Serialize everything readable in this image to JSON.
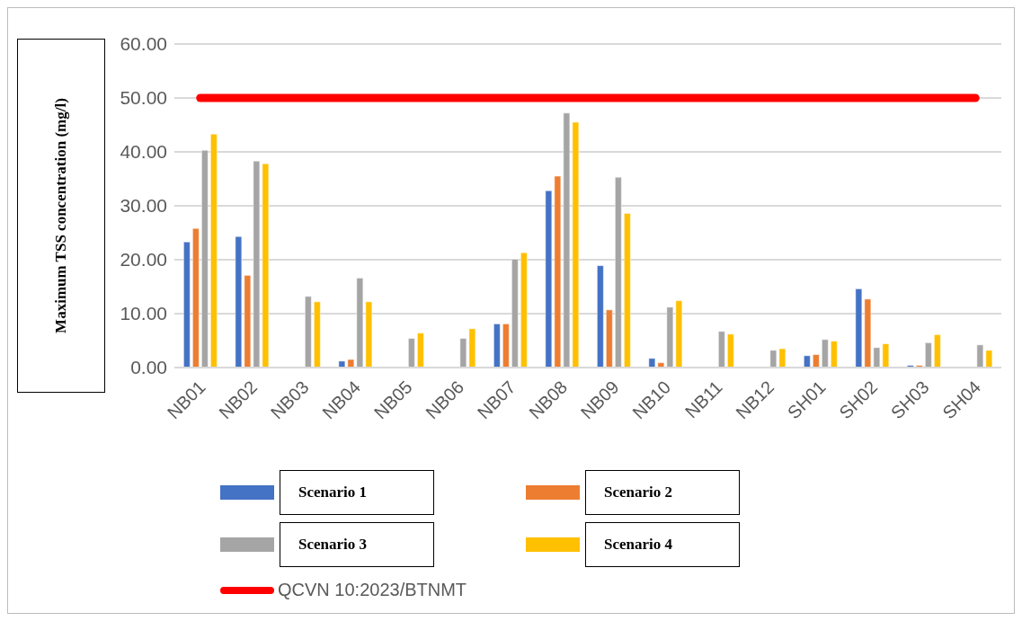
{
  "chart_data": {
    "type": "bar",
    "ylabel": "Maximum TSS concentration (mg/l)",
    "categories": [
      "NB01",
      "NB02",
      "NB03",
      "NB04",
      "NB05",
      "NB06",
      "NB07",
      "NB08",
      "NB09",
      "NB10",
      "NB11",
      "NB12",
      "SH01",
      "SH02",
      "SH03",
      "SH04"
    ],
    "series": [
      {
        "name": "Scenario 1",
        "color": "#4472c4",
        "values": [
          23.3,
          24.3,
          0,
          1.2,
          0,
          0,
          8.1,
          32.8,
          18.9,
          1.7,
          0,
          0,
          2.2,
          14.6,
          0.4,
          0
        ]
      },
      {
        "name": "Scenario 2",
        "color": "#ed7d31",
        "values": [
          25.8,
          17.1,
          0,
          1.5,
          0,
          0,
          8.1,
          35.5,
          10.7,
          0.9,
          0,
          0,
          2.4,
          12.7,
          0.4,
          0
        ]
      },
      {
        "name": "Scenario 3",
        "color": "#a5a5a5",
        "values": [
          40.3,
          38.3,
          13.2,
          16.6,
          5.4,
          5.4,
          20.1,
          47.2,
          35.3,
          11.2,
          6.7,
          3.2,
          5.2,
          3.7,
          4.6,
          4.2
        ]
      },
      {
        "name": "Scenario 4",
        "color": "#ffc000",
        "values": [
          43.3,
          37.8,
          12.2,
          12.2,
          6.4,
          7.2,
          21.3,
          45.5,
          28.6,
          12.4,
          6.2,
          3.5,
          4.9,
          4.4,
          6.1,
          3.2
        ]
      },
      {
        "name": "QCVN 10:2023/BTNMT",
        "type": "line",
        "color": "#ff0000",
        "values": [
          50,
          50,
          50,
          50,
          50,
          50,
          50,
          50,
          50,
          50,
          50,
          50,
          50,
          50,
          50,
          50
        ]
      }
    ],
    "ylim": [
      0,
      60
    ],
    "yticks": [
      {
        "value": 0,
        "label": "0.00"
      },
      {
        "value": 10,
        "label": "10.00"
      },
      {
        "value": 20,
        "label": "20.00"
      },
      {
        "value": 30,
        "label": "30.00"
      },
      {
        "value": 40,
        "label": "40.00"
      },
      {
        "value": 50,
        "label": "50.00"
      },
      {
        "value": 60,
        "label": "60.00"
      }
    ],
    "grid": "y",
    "legend": "bottom"
  }
}
